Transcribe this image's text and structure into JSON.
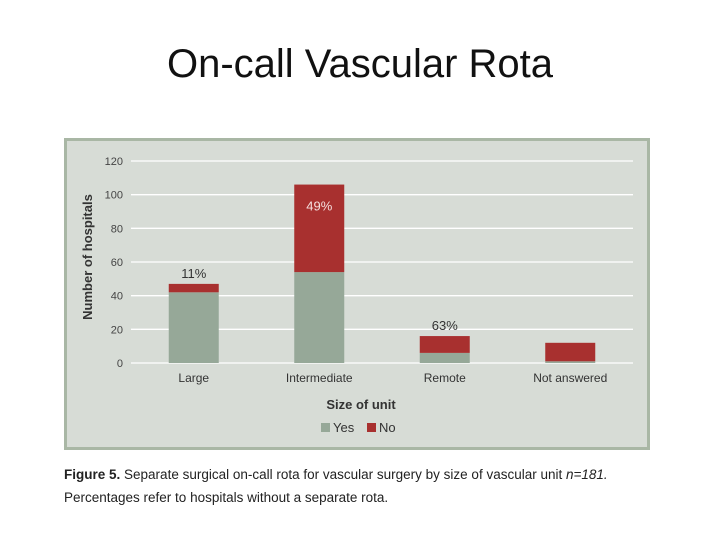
{
  "slide": {
    "title": "On-call Vascular Rota"
  },
  "caption": {
    "label": "Figure 5.",
    "text": "Separate surgical on-call rota for vascular surgery by size of vascular unit",
    "n_text": "n=181.",
    "line2": "Percentages refer to hospitals without a separate rota."
  },
  "chart_data": {
    "type": "bar",
    "stacked": true,
    "xlabel": "Size of unit",
    "ylabel": "Number of hospitals",
    "ylim": [
      0,
      120
    ],
    "yticks": [
      0,
      20,
      40,
      60,
      80,
      100,
      120
    ],
    "grid": true,
    "legend_position": "bottom",
    "categories": [
      "Large",
      "Intermediate",
      "Remote",
      "Not answered"
    ],
    "series": [
      {
        "name": "Yes",
        "color": "#96a898",
        "values": [
          42,
          54,
          6,
          1
        ]
      },
      {
        "name": "No",
        "color": "#a8302f",
        "values": [
          5,
          52,
          10,
          11
        ]
      }
    ],
    "annotations": [
      "11%",
      "49%",
      "63%",
      ""
    ]
  }
}
